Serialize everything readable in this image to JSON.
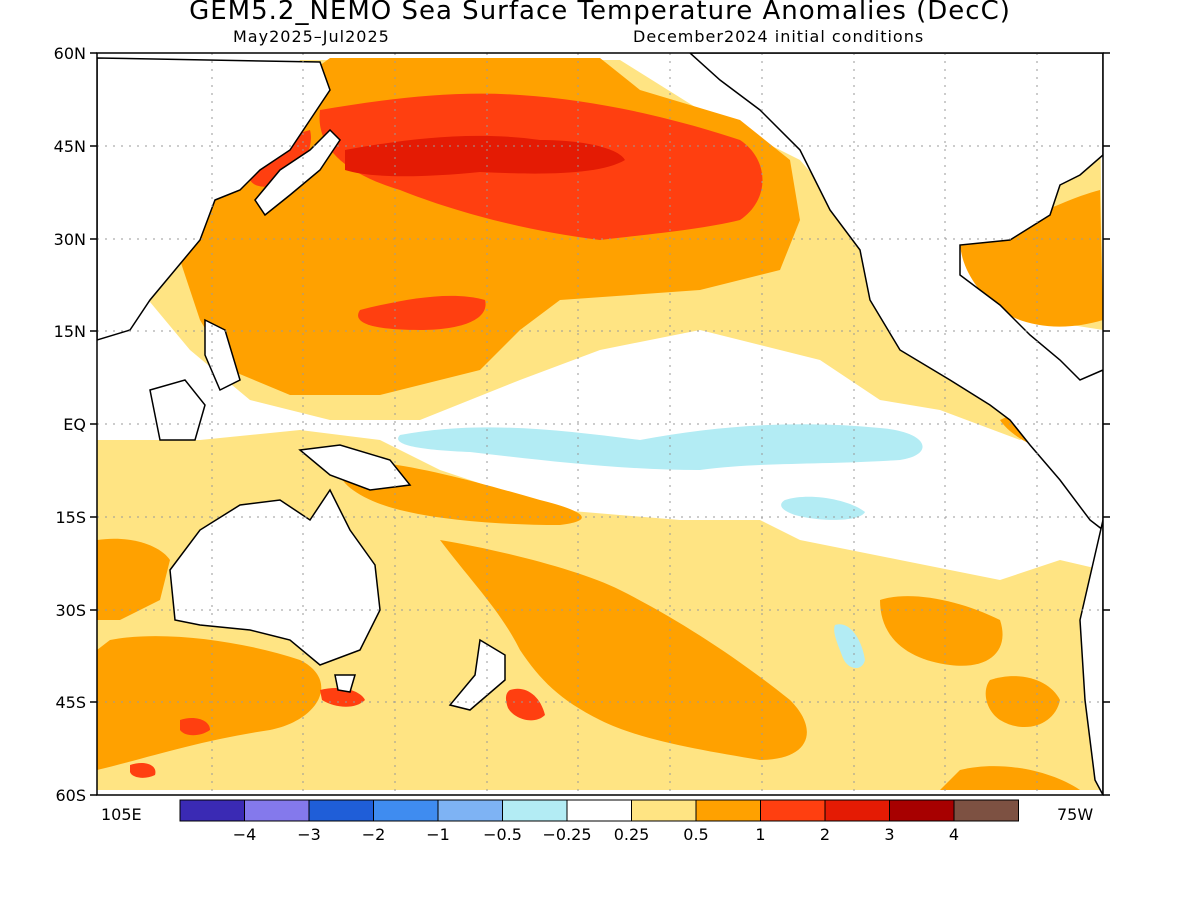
{
  "header": {
    "title": "GEM5.2_NEMO Sea Surface Temperature Anomalies (DecC)",
    "period": "May2025–Jul2025",
    "init": "December2024 initial conditions"
  },
  "axes": {
    "lat_labels": [
      "60N",
      "45N",
      "30N",
      "15N",
      "EQ",
      "15S",
      "30S",
      "45S",
      "60S"
    ],
    "lon_left": "105E",
    "lon_right": "75W"
  },
  "colorbar": {
    "colors": [
      "#3a2ab4",
      "#8479ec",
      "#1f5ed8",
      "#3f8cf0",
      "#7eb3f4",
      "#b3ecf4",
      "#ffffff",
      "#ffe483",
      "#ffa100",
      "#ff3f10",
      "#e41b04",
      "#a70000",
      "#7d5142"
    ],
    "labels": [
      "−4",
      "−3",
      "−2",
      "−1",
      "−0.5",
      "−0.25",
      "0.25",
      "0.5",
      "1",
      "2",
      "3",
      "4"
    ]
  }
}
